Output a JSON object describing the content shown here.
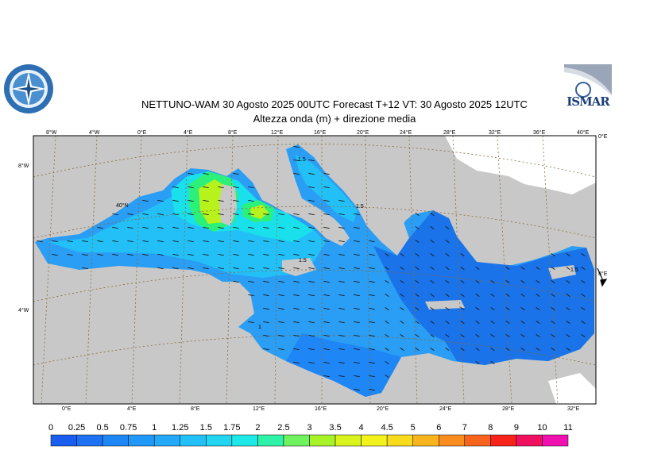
{
  "title": {
    "line1": "NETTUNO-WAM  30   Agosto  2025 00UTC Forecast T+12 VT: 30   Agosto  2025 12UTC",
    "line2": "Altezza onda (m) + direzione media"
  },
  "logos": {
    "right_text": "ISMAR"
  },
  "map": {
    "top_lon_labels": [
      "8°W",
      "4°W",
      "0°E",
      "4°E",
      "8°E",
      "12°E",
      "16°E",
      "20°E",
      "24°E",
      "28°E",
      "32°E",
      "36°E",
      "40°E"
    ],
    "bottom_lon_labels": [
      "0°E",
      "4°E",
      "8°E",
      "12°E",
      "16°E",
      "20°E",
      "24°E",
      "28°E",
      "32°E"
    ],
    "left_lat_labels": [
      "8°W",
      "4°W"
    ],
    "right_lat_labels": [
      "0°E",
      "8°E"
    ],
    "inner_lat_label": "40°N",
    "contour_labels": [
      "1.5",
      "1.5",
      "1.5",
      "1",
      "1.5"
    ],
    "colors": {
      "land": "#c8c8c8",
      "land_north": "#ffffff",
      "sea_deep": "#1a73e8",
      "sea_mid": "#2a9df4",
      "sea_light": "#21c3f3",
      "cyan": "#19e0ea",
      "green": "#2df07a",
      "yellow_green": "#b8f21c"
    }
  },
  "colorbar": {
    "labels": [
      "0",
      "0.25",
      "0.5",
      "0.75",
      "1",
      "1.25",
      "1.5",
      "1.75",
      "2",
      "2.5",
      "3",
      "3.5",
      "4",
      "4.5",
      "5",
      "6",
      "7",
      "8",
      "9",
      "10",
      "11"
    ],
    "colors": [
      "#1a5ef0",
      "#1c72f2",
      "#1e86f5",
      "#2098f7",
      "#22aaf8",
      "#22c0f6",
      "#22d6f2",
      "#1ee8e8",
      "#2ef2a8",
      "#6ef25e",
      "#a8f22a",
      "#d8f41c",
      "#f2f21c",
      "#f8dc1c",
      "#f8b41c",
      "#f88c1c",
      "#f8641c",
      "#f8241c",
      "#f01060",
      "#f010b0"
    ]
  }
}
